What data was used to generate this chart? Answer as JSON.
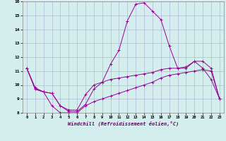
{
  "xlabel": "Windchill (Refroidissement éolien,°C)",
  "xlim": [
    -0.5,
    23.5
  ],
  "ylim": [
    8,
    16
  ],
  "yticks": [
    8,
    9,
    10,
    11,
    12,
    13,
    14,
    15,
    16
  ],
  "xticks": [
    0,
    1,
    2,
    3,
    4,
    5,
    6,
    7,
    8,
    9,
    10,
    11,
    12,
    13,
    14,
    15,
    16,
    17,
    18,
    19,
    20,
    21,
    22,
    23
  ],
  "line_color": "#990099",
  "bg_color": "#d4eeee",
  "grid_color": "#aaaacc",
  "series": [
    {
      "x": [
        0,
        1,
        2,
        3,
        4,
        5,
        6,
        7,
        8,
        9,
        10,
        11,
        12,
        13,
        14,
        15,
        16,
        17,
        18,
        19,
        20,
        21,
        22,
        23
      ],
      "y": [
        11.2,
        9.7,
        9.5,
        8.5,
        8.0,
        8.0,
        8.0,
        8.5,
        8.8,
        9.0,
        9.2,
        9.4,
        9.6,
        9.8,
        10.0,
        10.2,
        10.5,
        10.7,
        10.8,
        10.9,
        11.0,
        11.1,
        11.0,
        9.0
      ]
    },
    {
      "x": [
        0,
        1,
        2,
        3,
        4,
        5,
        6,
        7,
        8,
        9,
        10,
        11,
        12,
        13,
        14,
        15,
        16,
        17,
        18,
        19,
        20,
        21,
        22,
        23
      ],
      "y": [
        11.2,
        9.8,
        9.5,
        9.4,
        8.5,
        8.2,
        8.2,
        9.3,
        10.0,
        10.2,
        10.4,
        10.5,
        10.6,
        10.7,
        10.8,
        10.9,
        11.1,
        11.2,
        11.2,
        11.3,
        11.7,
        11.7,
        11.2,
        9.0
      ]
    },
    {
      "x": [
        0,
        1,
        2,
        3,
        4,
        5,
        6,
        7,
        8,
        9,
        10,
        11,
        12,
        13,
        14,
        15,
        16,
        17,
        18,
        19,
        20,
        21,
        22,
        23
      ],
      "y": [
        11.2,
        9.7,
        9.5,
        9.4,
        8.5,
        8.1,
        8.1,
        8.6,
        9.7,
        10.2,
        11.5,
        12.5,
        14.6,
        15.8,
        15.9,
        15.3,
        14.7,
        12.8,
        11.2,
        11.2,
        11.7,
        11.2,
        10.4,
        9.0
      ]
    }
  ]
}
